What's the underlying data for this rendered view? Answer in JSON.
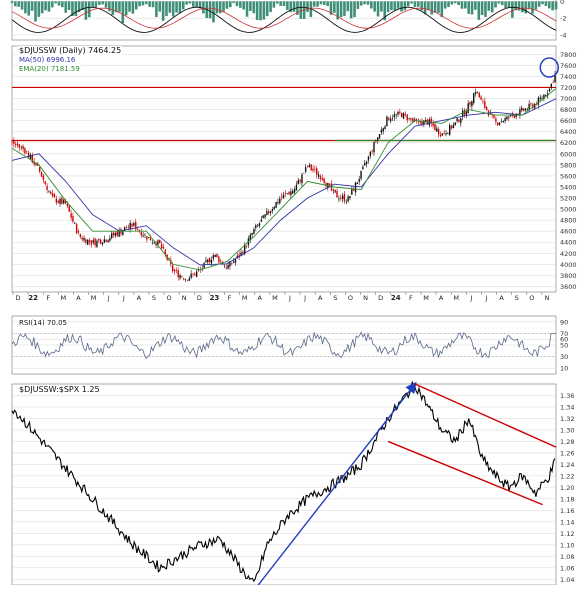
{
  "chart_data": {
    "type": "line",
    "panels": [
      {
        "id": "macd_top",
        "kind": "indicator-histogram",
        "y_ticks": [
          0,
          -2,
          -4
        ],
        "ylim": [
          -4.6,
          0.4
        ]
      },
      {
        "id": "price",
        "kind": "candlestick",
        "title": "$DJUSSW (Daily) 7464.25",
        "legend": [
          "MA(50) 6996.16",
          "EMA(20) 7181.59"
        ],
        "ylim": [
          3500,
          7950
        ],
        "y_ticks": [
          3600,
          3800,
          4000,
          4200,
          4400,
          4600,
          4800,
          5000,
          5200,
          5400,
          5600,
          5800,
          6000,
          6200,
          6400,
          6600,
          6800,
          7000,
          7200,
          7400,
          7600,
          7800
        ],
        "x_months": [
          "D",
          "22",
          "F",
          "M",
          "A",
          "M",
          "J",
          "J",
          "A",
          "S",
          "O",
          "N",
          "D",
          "23",
          "F",
          "M",
          "A",
          "M",
          "J",
          "J",
          "A",
          "S",
          "O",
          "N",
          "D",
          "24",
          "F",
          "M",
          "A",
          "M",
          "J",
          "J",
          "A",
          "S",
          "O",
          "N"
        ],
        "series": [
          {
            "name": "$DJUSSW",
            "color": "#000000",
            "points": [
              [
                0,
                6200
              ],
              [
                4,
                6060
              ],
              [
                8,
                5710
              ],
              [
                12,
                5190
              ],
              [
                16,
                5090
              ],
              [
                20,
                4510
              ],
              [
                24,
                4390
              ],
              [
                28,
                4460
              ],
              [
                32,
                4590
              ],
              [
                36,
                4720
              ],
              [
                40,
                4500
              ],
              [
                44,
                4360
              ],
              [
                48,
                3880
              ],
              [
                52,
                3740
              ],
              [
                56,
                3890
              ],
              [
                60,
                4170
              ],
              [
                64,
                3950
              ],
              [
                68,
                4170
              ],
              [
                72,
                4610
              ],
              [
                76,
                4920
              ],
              [
                80,
                5210
              ],
              [
                84,
                5350
              ],
              [
                88,
                5770
              ],
              [
                92,
                5600
              ],
              [
                96,
                5260
              ],
              [
                100,
                5170
              ],
              [
                104,
                5640
              ],
              [
                108,
                6190
              ],
              [
                112,
                6660
              ],
              [
                116,
                6720
              ],
              [
                120,
                6560
              ],
              [
                124,
                6580
              ],
              [
                128,
                6350
              ],
              [
                132,
                6540
              ],
              [
                136,
                6870
              ],
              [
                138,
                7160
              ],
              [
                140,
                6920
              ],
              [
                144,
                6560
              ],
              [
                148,
                6650
              ],
              [
                152,
                6780
              ],
              [
                156,
                6910
              ],
              [
                160,
                7170
              ],
              [
                162,
                7464
              ]
            ]
          },
          {
            "name": "MA(50)",
            "color": "#3333aa",
            "points": [
              [
                0,
                5880
              ],
              [
                8,
                6000
              ],
              [
                16,
                5500
              ],
              [
                24,
                4900
              ],
              [
                32,
                4600
              ],
              [
                40,
                4700
              ],
              [
                48,
                4300
              ],
              [
                56,
                3990
              ],
              [
                64,
                4010
              ],
              [
                72,
                4300
              ],
              [
                80,
                4800
              ],
              [
                88,
                5200
              ],
              [
                96,
                5450
              ],
              [
                104,
                5400
              ],
              [
                112,
                6000
              ],
              [
                120,
                6500
              ],
              [
                128,
                6600
              ],
              [
                136,
                6700
              ],
              [
                144,
                6750
              ],
              [
                152,
                6700
              ],
              [
                162,
                6996
              ]
            ]
          },
          {
            "name": "EMA(20)",
            "color": "#2e8b2e",
            "points": [
              [
                0,
                6100
              ],
              [
                8,
                5800
              ],
              [
                16,
                5150
              ],
              [
                24,
                4600
              ],
              [
                32,
                4600
              ],
              [
                40,
                4600
              ],
              [
                48,
                4000
              ],
              [
                56,
                3900
              ],
              [
                64,
                4050
              ],
              [
                72,
                4500
              ],
              [
                80,
                5000
              ],
              [
                88,
                5500
              ],
              [
                96,
                5400
              ],
              [
                104,
                5350
              ],
              [
                112,
                6200
              ],
              [
                120,
                6600
              ],
              [
                128,
                6550
              ],
              [
                136,
                6800
              ],
              [
                144,
                6700
              ],
              [
                152,
                6700
              ],
              [
                162,
                7182
              ]
            ]
          }
        ],
        "horizontal_lines": [
          {
            "y": 7200,
            "color": "#cc0000"
          },
          {
            "y": 6240,
            "color": "#cc0000"
          },
          {
            "y": 6240,
            "color": "#2e8b2e",
            "from_x": 96
          }
        ]
      },
      {
        "id": "rsi",
        "kind": "line",
        "title": "RSI(14) 70.05",
        "ylim": [
          0,
          100
        ],
        "y_ticks": [
          90,
          70,
          60,
          50,
          30,
          10
        ],
        "bands": [
          70,
          30
        ]
      },
      {
        "id": "ratio",
        "kind": "line",
        "title": "$DJUSSW:$SPX 1.25",
        "ylim": [
          1.03,
          1.38
        ],
        "y_ticks": [
          1.04,
          1.06,
          1.08,
          1.1,
          1.12,
          1.14,
          1.16,
          1.18,
          1.2,
          1.22,
          1.24,
          1.26,
          1.28,
          1.3,
          1.32,
          1.34,
          1.36
        ],
        "series": [
          {
            "name": "$DJUSSW:$SPX",
            "color": "#000000",
            "points": [
              [
                0,
                1.34
              ],
              [
                6,
                1.3
              ],
              [
                12,
                1.26
              ],
              [
                18,
                1.22
              ],
              [
                24,
                1.18
              ],
              [
                30,
                1.14
              ],
              [
                36,
                1.1
              ],
              [
                44,
                1.06
              ],
              [
                50,
                1.08
              ],
              [
                56,
                1.1
              ],
              [
                62,
                1.11
              ],
              [
                68,
                1.06
              ],
              [
                72,
                1.03
              ],
              [
                76,
                1.1
              ],
              [
                82,
                1.15
              ],
              [
                88,
                1.18
              ],
              [
                94,
                1.2
              ],
              [
                100,
                1.22
              ],
              [
                104,
                1.24
              ],
              [
                108,
                1.28
              ],
              [
                112,
                1.32
              ],
              [
                116,
                1.35
              ],
              [
                120,
                1.38
              ],
              [
                124,
                1.34
              ],
              [
                128,
                1.3
              ],
              [
                132,
                1.28
              ],
              [
                136,
                1.32
              ],
              [
                140,
                1.25
              ],
              [
                144,
                1.22
              ],
              [
                148,
                1.2
              ],
              [
                152,
                1.22
              ],
              [
                156,
                1.19
              ],
              [
                160,
                1.22
              ],
              [
                162,
                1.25
              ]
            ]
          }
        ],
        "annotations": [
          {
            "type": "arrow",
            "color": "#1f3fbf",
            "from": [
              72,
              1.02
            ],
            "to": [
              120,
              1.38
            ]
          },
          {
            "type": "trendline",
            "color": "#cc0000",
            "from": [
              120,
              1.38
            ],
            "to": [
              162,
              1.27
            ]
          },
          {
            "type": "trendline",
            "color": "#cc0000",
            "from": [
              112,
              1.28
            ],
            "to": [
              158,
              1.17
            ]
          }
        ]
      }
    ]
  }
}
